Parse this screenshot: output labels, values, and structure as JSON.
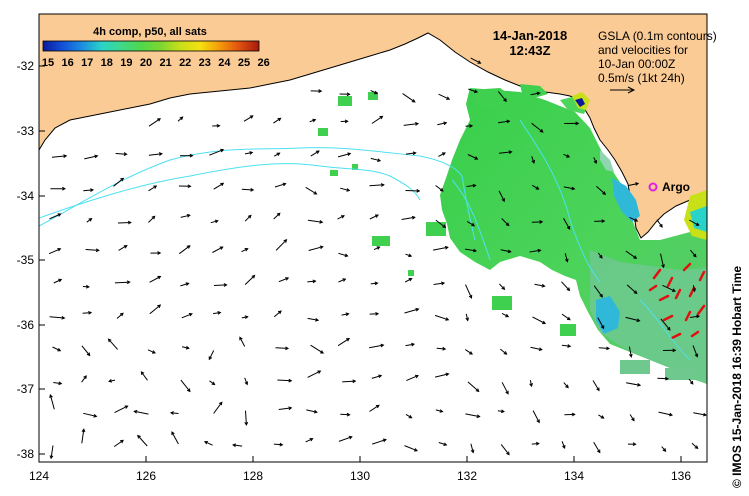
{
  "chart_data": {
    "type": "map",
    "title": "4h comp, p50, all sats",
    "timestamp_date": "14-Jan-2018",
    "timestamp_time": "12:43Z",
    "x_ticks": [
      "124",
      "126",
      "128",
      "130",
      "132",
      "134",
      "136"
    ],
    "y_ticks": [
      "-32",
      "-33",
      "-34",
      "-35",
      "-36",
      "-37",
      "-38"
    ],
    "xlim": [
      124,
      136.5
    ],
    "ylim": [
      -38.1,
      -31.2
    ],
    "colorbar": {
      "ticks": [
        "15",
        "16",
        "17",
        "18",
        "19",
        "20",
        "21",
        "22",
        "23",
        "24",
        "25",
        "26"
      ],
      "colors": [
        "#0a1a9c",
        "#1450d8",
        "#1c8fe0",
        "#2ad3c8",
        "#3fd98a",
        "#4fd84a",
        "#7ed632",
        "#c8e018",
        "#f5e010",
        "#f59a0a",
        "#e05010",
        "#a51a0a"
      ]
    },
    "legend": {
      "lines": [
        "GSLA (0.1m contours)",
        "and velocities for",
        "10-Jan 00:00Z",
        "0.5m/s (1kt 24h)"
      ]
    },
    "argo_label": "Argo",
    "credit": "© IMOS 15-Jan-2018 16:39 Hobart Time",
    "colors": {
      "land": "#fbcb95",
      "ocean": "#ffffff",
      "argo": "#e020e0",
      "contour": "#4de0f0",
      "sst_main": "#3fca45"
    }
  }
}
